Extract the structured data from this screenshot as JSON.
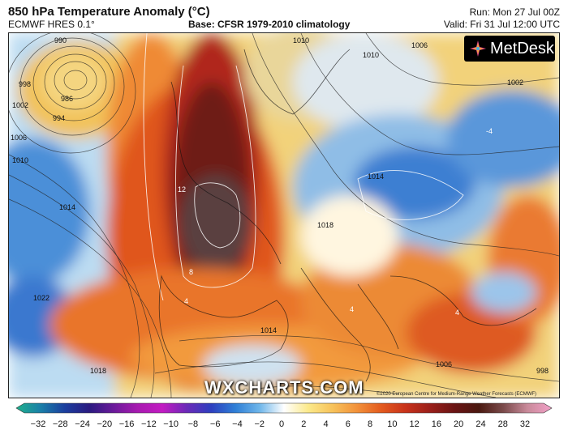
{
  "header": {
    "title": "850 hPa Temperature Anomaly (°C)",
    "model": "ECMWF HRES 0.1°",
    "base": "Base: CFSR 1979-2010 climatology",
    "run": "Run: Mon 27 Jul 00Z",
    "valid": "Valid: Fri 31 Jul 12:00 UTC"
  },
  "logo": {
    "text": "MetDesk",
    "icon": "metdesk-star-icon"
  },
  "watermark": "WXCHARTS.COM",
  "copyright": "©2020 European Centre for Medium-Range Weather Forecasts (ECMWF)",
  "isobar_labels": [
    "990",
    "986",
    "994",
    "998",
    "1002",
    "1006",
    "1010",
    "1014",
    "1018",
    "1022",
    "1010",
    "1006",
    "1002",
    "1014",
    "1010",
    "1014",
    "1006",
    "1018",
    "998"
  ],
  "anomaly_labels": [
    "12",
    "8",
    "4",
    "4",
    "4",
    "-4"
  ],
  "colorbar": {
    "ticks": [
      "−32",
      "−28",
      "−24",
      "−20",
      "−16",
      "−12",
      "−10",
      "−8",
      "−6",
      "−4",
      "−2",
      "0",
      "2",
      "4",
      "6",
      "8",
      "10",
      "12",
      "16",
      "20",
      "24",
      "28",
      "32"
    ],
    "colors": [
      "#1fb08c",
      "#1a7fa8",
      "#1b3e9e",
      "#2a1a80",
      "#6a1a9a",
      "#a81ab0",
      "#c21bc2",
      "#6b2ab8",
      "#2e3fbf",
      "#2f7fd6",
      "#6fb6ea",
      "#ffffff",
      "#fbe98a",
      "#f7c25a",
      "#f2913a",
      "#e35a1e",
      "#c8321a",
      "#9a1f1a",
      "#6a1414",
      "#4a1810",
      "#7a4a4a",
      "#c98a9a",
      "#f2a0c8"
    ]
  }
}
